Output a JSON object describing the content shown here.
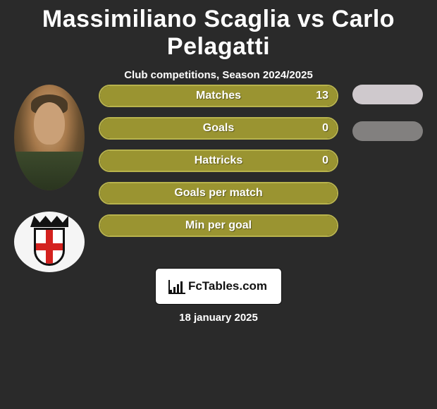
{
  "title": "Massimiliano Scaglia vs Carlo Pelagatti",
  "subtitle": "Club competitions, Season 2024/2025",
  "date": "18 january 2025",
  "logo_text": "FcTables.com",
  "colors": {
    "background": "#2a2a2a",
    "bar_fill": "#9a9431",
    "bar_border": "#b8b34c",
    "pill1": "#cfc9cd",
    "pill2": "#82807f"
  },
  "stats": [
    {
      "label": "Matches",
      "value": "13",
      "fill_pct": 100
    },
    {
      "label": "Goals",
      "value": "0",
      "fill_pct": 100
    },
    {
      "label": "Hattricks",
      "value": "0",
      "fill_pct": 100
    },
    {
      "label": "Goals per match",
      "value": "",
      "fill_pct": 100
    },
    {
      "label": "Min per goal",
      "value": "",
      "fill_pct": 100
    }
  ],
  "right_pills": [
    {
      "color": "#cfc9cd"
    },
    {
      "color": "#82807f"
    }
  ],
  "left": {
    "player_name": "Massimiliano Scaglia",
    "club_name": "Pro Vercelli"
  }
}
